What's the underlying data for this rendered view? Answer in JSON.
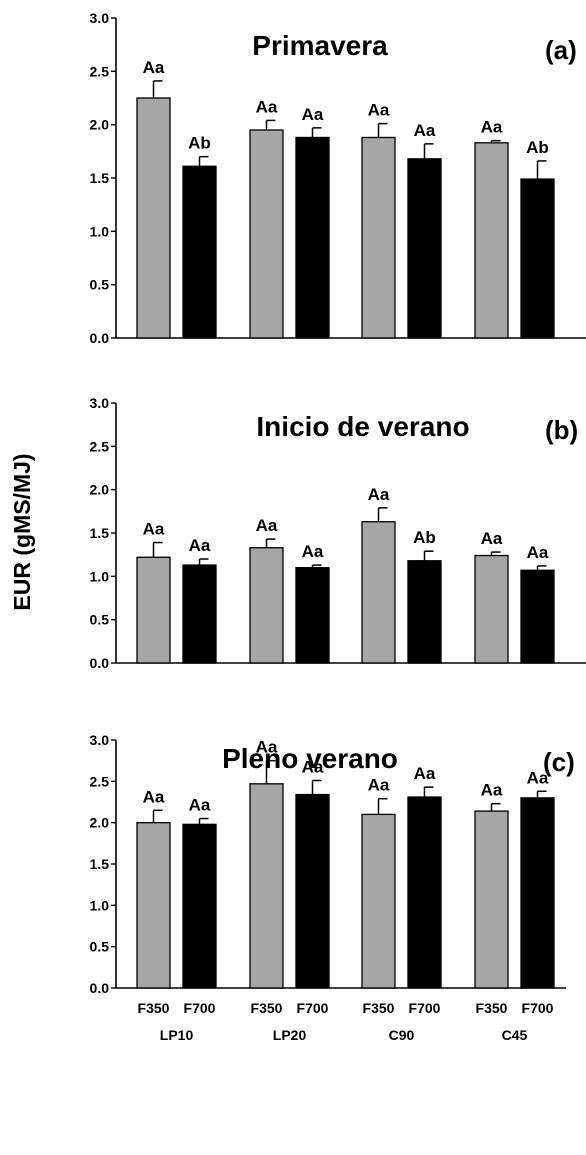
{
  "figure": {
    "ylabel": "EUR (gMS/MJ)"
  },
  "colors": {
    "F350": "#a6a6a6",
    "F700": "#000000"
  },
  "chart_data": [
    {
      "type": "bar",
      "title": "Primavera",
      "panel_label": "(a)",
      "ylim": [
        0,
        3.0
      ],
      "yticks": [
        "0.0",
        "0.5",
        "1.0",
        "1.5",
        "2.0",
        "2.5",
        "3.0"
      ],
      "groups": [
        "LP10",
        "LP20",
        "C90",
        "C45"
      ],
      "series": [
        {
          "name": "F350",
          "values": [
            2.25,
            1.95,
            1.88,
            1.83
          ],
          "errors": [
            0.16,
            0.09,
            0.13,
            0.02
          ],
          "labels": [
            "Aa",
            "Aa",
            "Aa",
            "Aa"
          ]
        },
        {
          "name": "F700",
          "values": [
            1.61,
            1.88,
            1.68,
            1.49
          ],
          "errors": [
            0.09,
            0.09,
            0.14,
            0.17
          ],
          "labels": [
            "Ab",
            "Aa",
            "Aa",
            "Ab"
          ]
        }
      ]
    },
    {
      "type": "bar",
      "title": "Inicio de verano",
      "panel_label": "(b)",
      "ylim": [
        0,
        3.0
      ],
      "yticks": [
        "0.0",
        "0.5",
        "1.0",
        "1.5",
        "2.0",
        "2.5",
        "3.0"
      ],
      "groups": [
        "LP10",
        "LP20",
        "C90",
        "C45"
      ],
      "series": [
        {
          "name": "F350",
          "values": [
            1.22,
            1.33,
            1.63,
            1.24
          ],
          "errors": [
            0.17,
            0.1,
            0.16,
            0.04
          ],
          "labels": [
            "Aa",
            "Aa",
            "Aa",
            "Aa"
          ]
        },
        {
          "name": "F700",
          "values": [
            1.13,
            1.1,
            1.18,
            1.07
          ],
          "errors": [
            0.07,
            0.03,
            0.11,
            0.05
          ],
          "labels": [
            "Aa",
            "Aa",
            "Ab",
            "Aa"
          ]
        }
      ]
    },
    {
      "type": "bar",
      "title": "Pleno verano",
      "panel_label": "(c)",
      "ylim": [
        0,
        3.0
      ],
      "yticks": [
        "0.0",
        "0.5",
        "1.0",
        "1.5",
        "2.0",
        "2.5",
        "3.0"
      ],
      "groups": [
        "LP10",
        "LP20",
        "C90",
        "C45"
      ],
      "series": [
        {
          "name": "F350",
          "values": [
            2.0,
            2.47,
            2.1,
            2.14
          ],
          "errors": [
            0.15,
            0.28,
            0.19,
            0.09
          ],
          "labels": [
            "Aa",
            "Aa",
            "Aa",
            "Aa"
          ]
        },
        {
          "name": "F700",
          "values": [
            1.98,
            2.34,
            2.31,
            2.3
          ],
          "errors": [
            0.07,
            0.17,
            0.12,
            0.08
          ],
          "labels": [
            "Aa",
            "Aa",
            "Aa",
            "Aa"
          ]
        }
      ],
      "xlabels": [
        "F350",
        "F700",
        "F350",
        "F700",
        "F350",
        "F700",
        "F350",
        "F700"
      ]
    }
  ]
}
